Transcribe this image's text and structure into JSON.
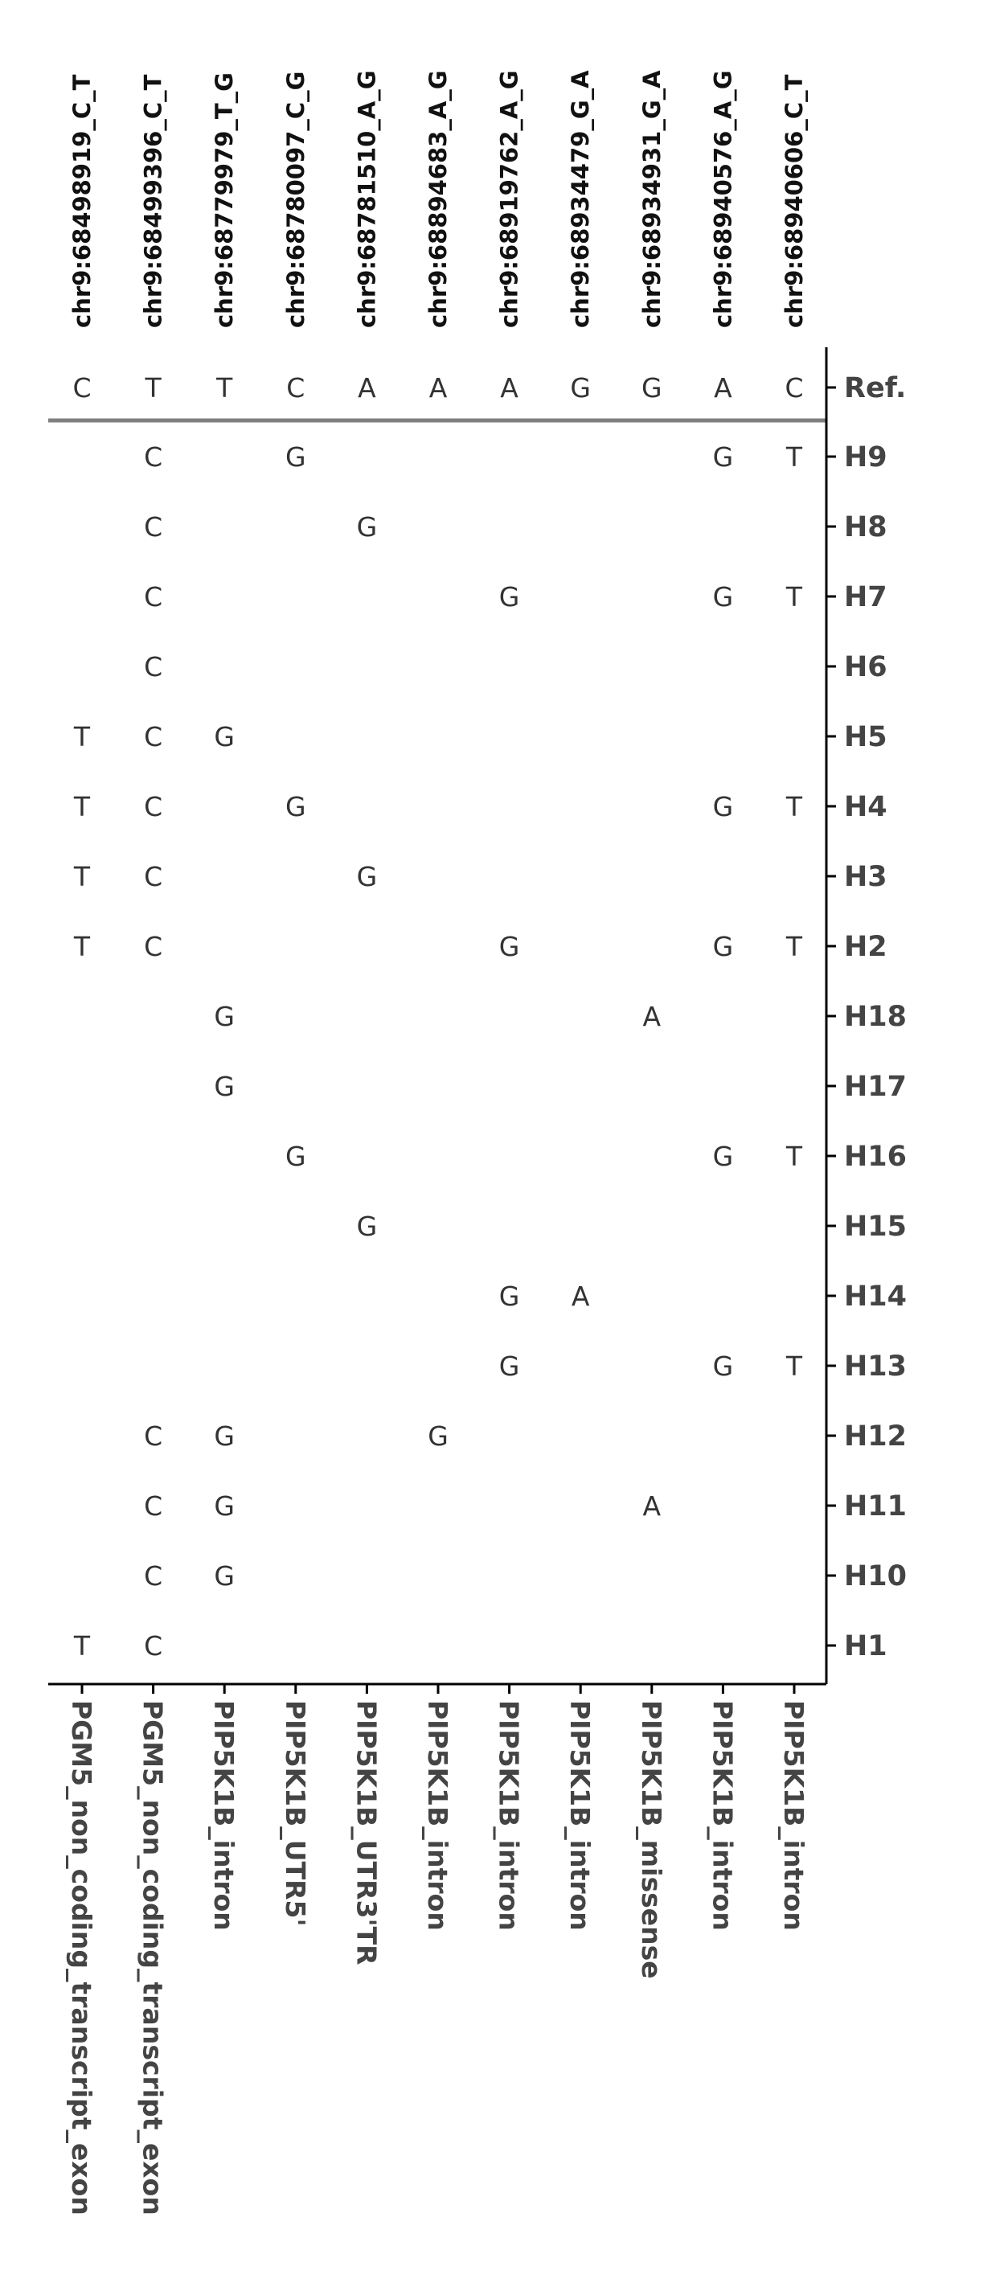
{
  "chart_data": {
    "type": "table",
    "title": "",
    "snps": [
      "chr9:68498919_C_T",
      "chr9:68499396_C_T",
      "chr9:68779979_T_G",
      "chr9:68780097_C_G",
      "chr9:68781510_A_G",
      "chr9:68894683_A_G",
      "chr9:68919762_A_G",
      "chr9:68934479_G_A",
      "chr9:68934931_G_A",
      "chr9:68940576_A_G",
      "chr9:68940606_C_T"
    ],
    "annotations": [
      "PGM5_non_coding_transcript_exon",
      "PGM5_non_coding_transcript_exon",
      "PIP5K1B_intron",
      "PIP5K1B_UTR5'",
      "PIP5K1B_UTR3'TR",
      "PIP5K1B_intron",
      "PIP5K1B_intron",
      "PIP5K1B_intron",
      "PIP5K1B_missense",
      "PIP5K1B_intron",
      "PIP5K1B_intron"
    ],
    "reference": {
      "label": "Ref.",
      "alleles": [
        "C",
        "T",
        "T",
        "C",
        "A",
        "A",
        "A",
        "G",
        "G",
        "A",
        "C"
      ]
    },
    "haplotypes": [
      {
        "name": "H9",
        "alleles": [
          "",
          "C",
          "",
          "G",
          "",
          "",
          "",
          "",
          "",
          "G",
          "T"
        ]
      },
      {
        "name": "H8",
        "alleles": [
          "",
          "C",
          "",
          "",
          "G",
          "",
          "",
          "",
          "",
          "",
          ""
        ]
      },
      {
        "name": "H7",
        "alleles": [
          "",
          "C",
          "",
          "",
          "",
          "",
          "G",
          "",
          "",
          "G",
          "T"
        ]
      },
      {
        "name": "H6",
        "alleles": [
          "",
          "C",
          "",
          "",
          "",
          "",
          "",
          "",
          "",
          "",
          ""
        ]
      },
      {
        "name": "H5",
        "alleles": [
          "T",
          "C",
          "G",
          "",
          "",
          "",
          "",
          "",
          "",
          "",
          ""
        ]
      },
      {
        "name": "H4",
        "alleles": [
          "T",
          "C",
          "",
          "G",
          "",
          "",
          "",
          "",
          "",
          "G",
          "T"
        ]
      },
      {
        "name": "H3",
        "alleles": [
          "T",
          "C",
          "",
          "",
          "G",
          "",
          "",
          "",
          "",
          "",
          ""
        ]
      },
      {
        "name": "H2",
        "alleles": [
          "T",
          "C",
          "",
          "",
          "",
          "",
          "G",
          "",
          "",
          "G",
          "T"
        ]
      },
      {
        "name": "H18",
        "alleles": [
          "",
          "",
          "G",
          "",
          "",
          "",
          "",
          "",
          "A",
          "",
          ""
        ]
      },
      {
        "name": "H17",
        "alleles": [
          "",
          "",
          "G",
          "",
          "",
          "",
          "",
          "",
          "",
          "",
          ""
        ]
      },
      {
        "name": "H16",
        "alleles": [
          "",
          "",
          "",
          "G",
          "",
          "",
          "",
          "",
          "",
          "G",
          "T"
        ]
      },
      {
        "name": "H15",
        "alleles": [
          "",
          "",
          "",
          "",
          "G",
          "",
          "",
          "",
          "",
          "",
          ""
        ]
      },
      {
        "name": "H14",
        "alleles": [
          "",
          "",
          "",
          "",
          "",
          "",
          "G",
          "A",
          "",
          "",
          ""
        ]
      },
      {
        "name": "H13",
        "alleles": [
          "",
          "",
          "",
          "",
          "",
          "",
          "G",
          "",
          "",
          "G",
          "T"
        ]
      },
      {
        "name": "H12",
        "alleles": [
          "",
          "C",
          "G",
          "",
          "",
          "G",
          "",
          "",
          "",
          "",
          ""
        ]
      },
      {
        "name": "H11",
        "alleles": [
          "",
          "C",
          "G",
          "",
          "",
          "",
          "",
          "",
          "A",
          "",
          ""
        ]
      },
      {
        "name": "H10",
        "alleles": [
          "",
          "C",
          "G",
          "",
          "",
          "",
          "",
          "",
          "",
          "",
          ""
        ]
      },
      {
        "name": "H1",
        "alleles": [
          "T",
          "C",
          "",
          "",
          "",
          "",
          "",
          "",
          "",
          "",
          ""
        ]
      }
    ],
    "colors": {
      "axis": "#000000",
      "separator": "#808080",
      "text": "#333333",
      "row_label": "#444444"
    }
  }
}
